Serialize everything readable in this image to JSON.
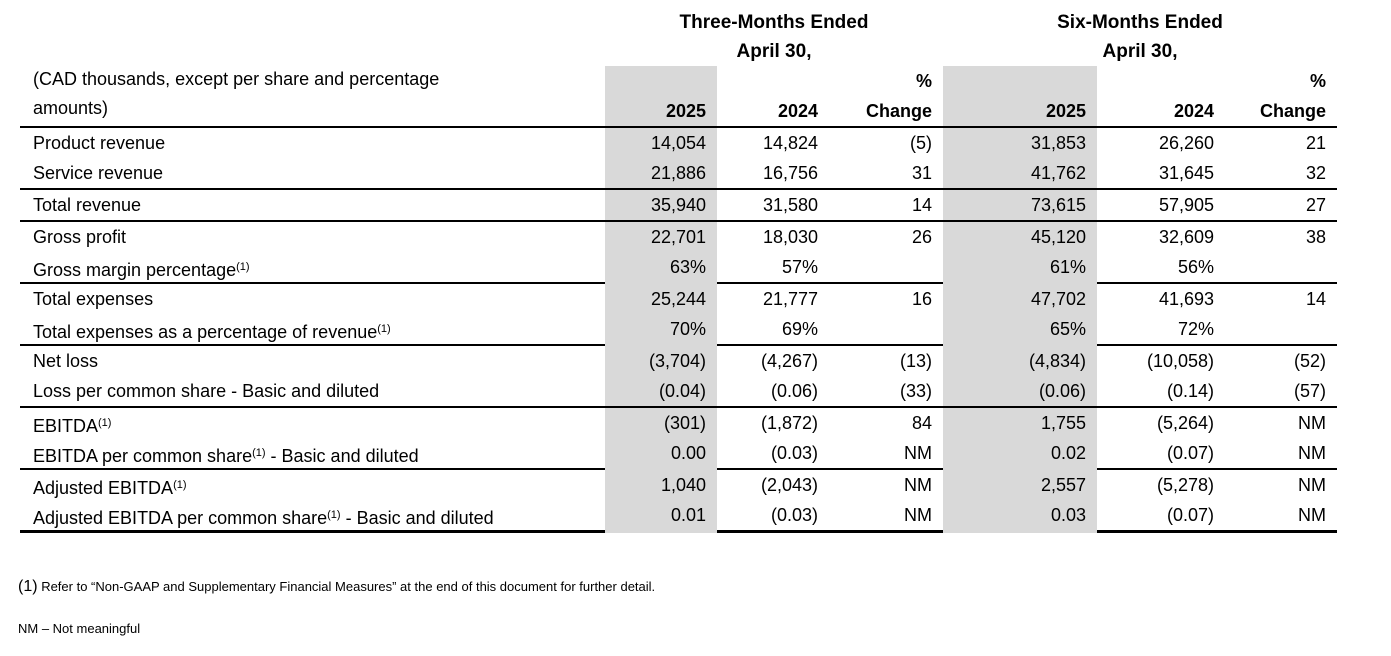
{
  "colors": {
    "background": "#ffffff",
    "shading": "#d9d9d9",
    "rule": "#000000"
  },
  "header": {
    "three_months_title": "Three-Months Ended",
    "six_months_title": "Six-Months Ended",
    "april_subtitle": "April 30,",
    "percent_label": "%",
    "change_label": "Change",
    "col_2025": "2025",
    "col_2024": "2024",
    "units_note_lines": [
      "(CAD thousands, except per share and percentage",
      "amounts)"
    ]
  },
  "table": {
    "rows": [
      {
        "label": "Product revenue",
        "sup": "",
        "suffix": "",
        "group_end": false,
        "values": [
          "14,054",
          "14,824",
          "(5)",
          "31,853",
          "26,260",
          "21"
        ]
      },
      {
        "label": "Service revenue",
        "sup": "",
        "suffix": "",
        "group_end": true,
        "values": [
          "21,886",
          "16,756",
          "31",
          "41,762",
          "31,645",
          "32"
        ]
      },
      {
        "label": "Total revenue",
        "sup": "",
        "suffix": "",
        "group_end": true,
        "values": [
          "35,940",
          "31,580",
          "14",
          "73,615",
          "57,905",
          "27"
        ]
      },
      {
        "label": "Gross profit",
        "sup": "",
        "suffix": "",
        "group_end": false,
        "values": [
          "22,701",
          "18,030",
          "26",
          "45,120",
          "32,609",
          "38"
        ]
      },
      {
        "label": "Gross margin percentage",
        "sup": "(1)",
        "suffix": "",
        "group_end": true,
        "values": [
          "63%",
          "57%",
          "",
          "61%",
          "56%",
          ""
        ]
      },
      {
        "label": "Total expenses",
        "sup": "",
        "suffix": "",
        "group_end": false,
        "values": [
          "25,244",
          "21,777",
          "16",
          "47,702",
          "41,693",
          "14"
        ]
      },
      {
        "label": "Total expenses as a percentage of revenue",
        "sup": "(1)",
        "suffix": "",
        "group_end": true,
        "values": [
          "70%",
          "69%",
          "",
          "65%",
          "72%",
          ""
        ]
      },
      {
        "label": "Net loss",
        "sup": "",
        "suffix": "",
        "group_end": false,
        "values": [
          "(3,704)",
          "(4,267)",
          "(13)",
          "(4,834)",
          "(10,058)",
          "(52)"
        ]
      },
      {
        "label": "Loss per common share - Basic and diluted",
        "sup": "",
        "suffix": "",
        "group_end": true,
        "values": [
          "(0.04)",
          "(0.06)",
          "(33)",
          "(0.06)",
          "(0.14)",
          "(57)"
        ]
      },
      {
        "label": "EBITDA",
        "sup": "(1)",
        "suffix": "",
        "group_end": false,
        "values": [
          "(301)",
          "(1,872)",
          "84",
          "1,755",
          "(5,264)",
          "NM"
        ]
      },
      {
        "label": "EBITDA per common share",
        "sup": "(1)",
        "suffix": " - Basic and diluted",
        "group_end": true,
        "values": [
          "0.00",
          "(0.03)",
          "NM",
          "0.02",
          "(0.07)",
          "NM"
        ]
      },
      {
        "label": "Adjusted EBITDA",
        "sup": "(1)",
        "suffix": "",
        "group_end": false,
        "values": [
          "1,040",
          "(2,043)",
          "NM",
          "2,557",
          "(5,278)",
          "NM"
        ]
      },
      {
        "label": "Adjusted EBITDA per common share",
        "sup": "(1)",
        "suffix": " - Basic and diluted",
        "group_end": false,
        "values": [
          "0.01",
          "(0.03)",
          "NM",
          "0.03",
          "(0.07)",
          "NM"
        ]
      }
    ]
  },
  "footnotes": {
    "ref_marker": "(1)",
    "ref_text": "Refer to “Non-GAAP and Supplementary Financial Measures” at the end of this document for further detail.",
    "nm_note": "NM – Not meaningful"
  }
}
